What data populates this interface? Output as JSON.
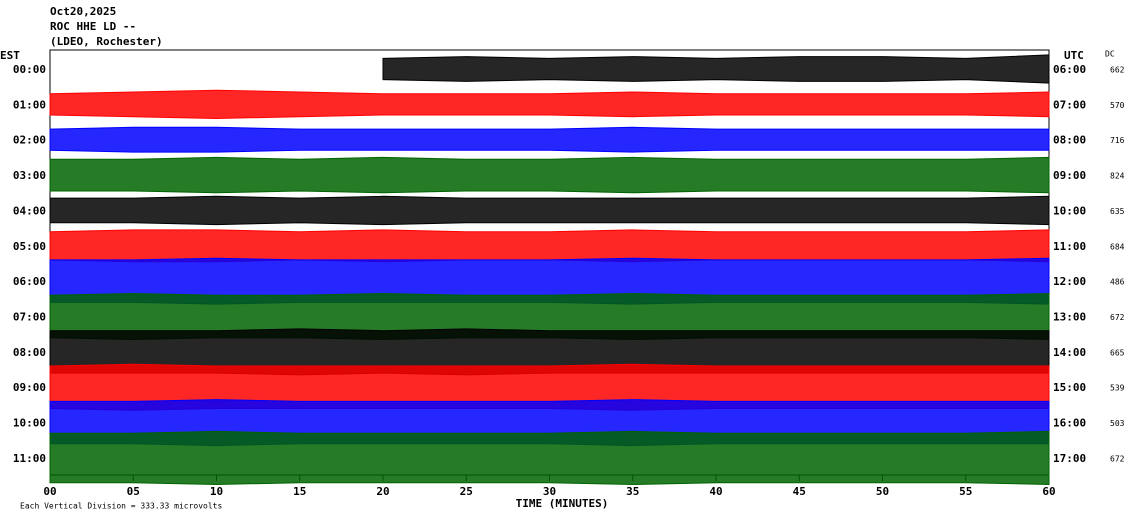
{
  "chart_data": {
    "type": "helicorder",
    "title_lines": [
      "Oct20,2025",
      "ROC HHE LD --",
      "(LDEO, Rochester)"
    ],
    "left_axis_label": "EST",
    "right_axis_label": "UTC",
    "dc_label": "DC",
    "xlabel": "TIME (MINUTES)",
    "footnote": "Each Vertical Division =  333.33 microvolts",
    "x": [
      0,
      5,
      10,
      15,
      20,
      25,
      30,
      35,
      40,
      45,
      50,
      55,
      60
    ],
    "xlim": [
      0,
      60
    ],
    "xticks": [
      {
        "value": 0,
        "label": "00"
      },
      {
        "value": 5,
        "label": "05"
      },
      10,
      15,
      20,
      25,
      30,
      35,
      40,
      45,
      50,
      55,
      60
    ],
    "rows": [
      {
        "est": "00:00",
        "utc": "06:00",
        "dc": 662,
        "color": "#000000",
        "values": [
          null,
          null,
          null,
          null,
          0.3,
          0.35,
          0.3,
          0.35,
          0.3,
          0.35,
          0.35,
          0.3,
          0.4
        ]
      },
      {
        "est": "01:00",
        "utc": "07:00",
        "dc": 570,
        "color": "#ff0000",
        "values": [
          0.3,
          0.35,
          0.4,
          0.35,
          0.3,
          0.3,
          0.3,
          0.35,
          0.3,
          0.3,
          0.3,
          0.3,
          0.35
        ]
      },
      {
        "est": "02:00",
        "utc": "08:00",
        "dc": 716,
        "color": "#0000ff",
        "values": [
          0.3,
          0.35,
          0.35,
          0.3,
          0.3,
          0.3,
          0.3,
          0.35,
          0.3,
          0.3,
          0.3,
          0.3,
          0.3
        ]
      },
      {
        "est": "03:00",
        "utc": "09:00",
        "dc": 824,
        "color": "#006400",
        "values": [
          0.45,
          0.45,
          0.5,
          0.45,
          0.5,
          0.45,
          0.45,
          0.5,
          0.45,
          0.45,
          0.45,
          0.45,
          0.5
        ]
      },
      {
        "est": "04:00",
        "utc": "10:00",
        "dc": 635,
        "color": "#000000",
        "values": [
          0.35,
          0.35,
          0.4,
          0.35,
          0.4,
          0.35,
          0.35,
          0.35,
          0.35,
          0.35,
          0.35,
          0.35,
          0.4
        ]
      },
      {
        "est": "05:00",
        "utc": "11:00",
        "dc": 684,
        "color": "#ff0000",
        "values": [
          0.4,
          0.45,
          0.45,
          0.4,
          0.45,
          0.4,
          0.4,
          0.45,
          0.4,
          0.4,
          0.4,
          0.4,
          0.45
        ]
      },
      {
        "est": "06:00",
        "utc": "12:00",
        "dc": 486,
        "color": "#0000ff",
        "values": [
          0.6,
          0.6,
          0.65,
          0.6,
          0.6,
          0.6,
          0.6,
          0.65,
          0.6,
          0.6,
          0.6,
          0.6,
          0.65
        ]
      },
      {
        "est": "07:00",
        "utc": "13:00",
        "dc": 672,
        "color": "#006400",
        "values": [
          0.6,
          0.65,
          0.6,
          0.6,
          0.65,
          0.6,
          0.6,
          0.65,
          0.6,
          0.6,
          0.6,
          0.6,
          0.65
        ]
      },
      {
        "est": "08:00",
        "utc": "14:00",
        "dc": 665,
        "color": "#000000",
        "values": [
          0.6,
          0.6,
          0.6,
          0.65,
          0.6,
          0.65,
          0.6,
          0.6,
          0.6,
          0.6,
          0.6,
          0.6,
          0.6
        ]
      },
      {
        "est": "09:00",
        "utc": "15:00",
        "dc": 539,
        "color": "#ff0000",
        "values": [
          0.6,
          0.65,
          0.6,
          0.6,
          0.6,
          0.6,
          0.6,
          0.65,
          0.6,
          0.6,
          0.6,
          0.6,
          0.6
        ]
      },
      {
        "est": "10:00",
        "utc": "16:00",
        "dc": 503,
        "color": "#0000ff",
        "values": [
          0.6,
          0.6,
          0.65,
          0.6,
          0.6,
          0.6,
          0.6,
          0.65,
          0.6,
          0.6,
          0.6,
          0.6,
          0.6
        ]
      },
      {
        "est": "11:00",
        "utc": "17:00",
        "dc": 672,
        "color": "#006400",
        "values": [
          0.7,
          0.7,
          0.75,
          0.7,
          0.7,
          0.7,
          0.7,
          0.75,
          0.7,
          0.7,
          0.7,
          0.7,
          0.75
        ]
      }
    ]
  }
}
